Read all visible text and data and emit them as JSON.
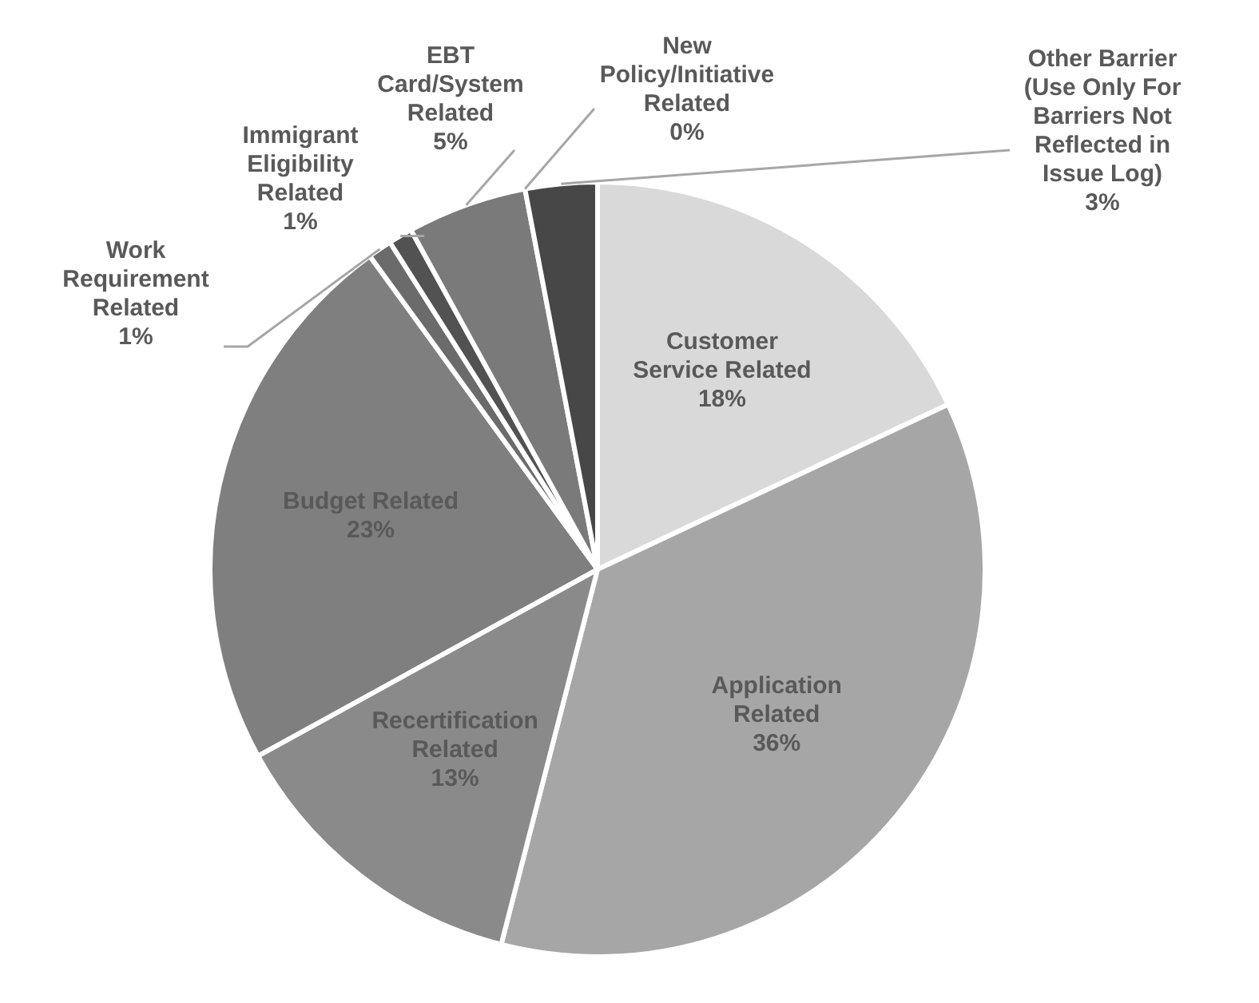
{
  "chart_data": {
    "type": "pie",
    "categories": [
      "Customer Service Related",
      "Application Related",
      "Recertification Related",
      "Budget Related",
      "Work Requirement Related",
      "Immigrant Eligibility Related",
      "EBT Card/System Related",
      "New Policy/Initiative Related",
      "Other Barrier (Use Only For Barriers Not Reflected in Issue Log)"
    ],
    "values": [
      18,
      36,
      13,
      23,
      1,
      1,
      5,
      0,
      3
    ],
    "colors": [
      "#d9d9d9",
      "#a6a6a6",
      "#8a8a8a",
      "#7f7f7f",
      "#6b6b6b",
      "#525252",
      "#7a7a7a",
      "#6f6f6f",
      "#474747"
    ],
    "value_labels": [
      "18%",
      "36%",
      "13%",
      "23%",
      "1%",
      "1%",
      "5%",
      "0%",
      "3%"
    ],
    "legend": false
  }
}
